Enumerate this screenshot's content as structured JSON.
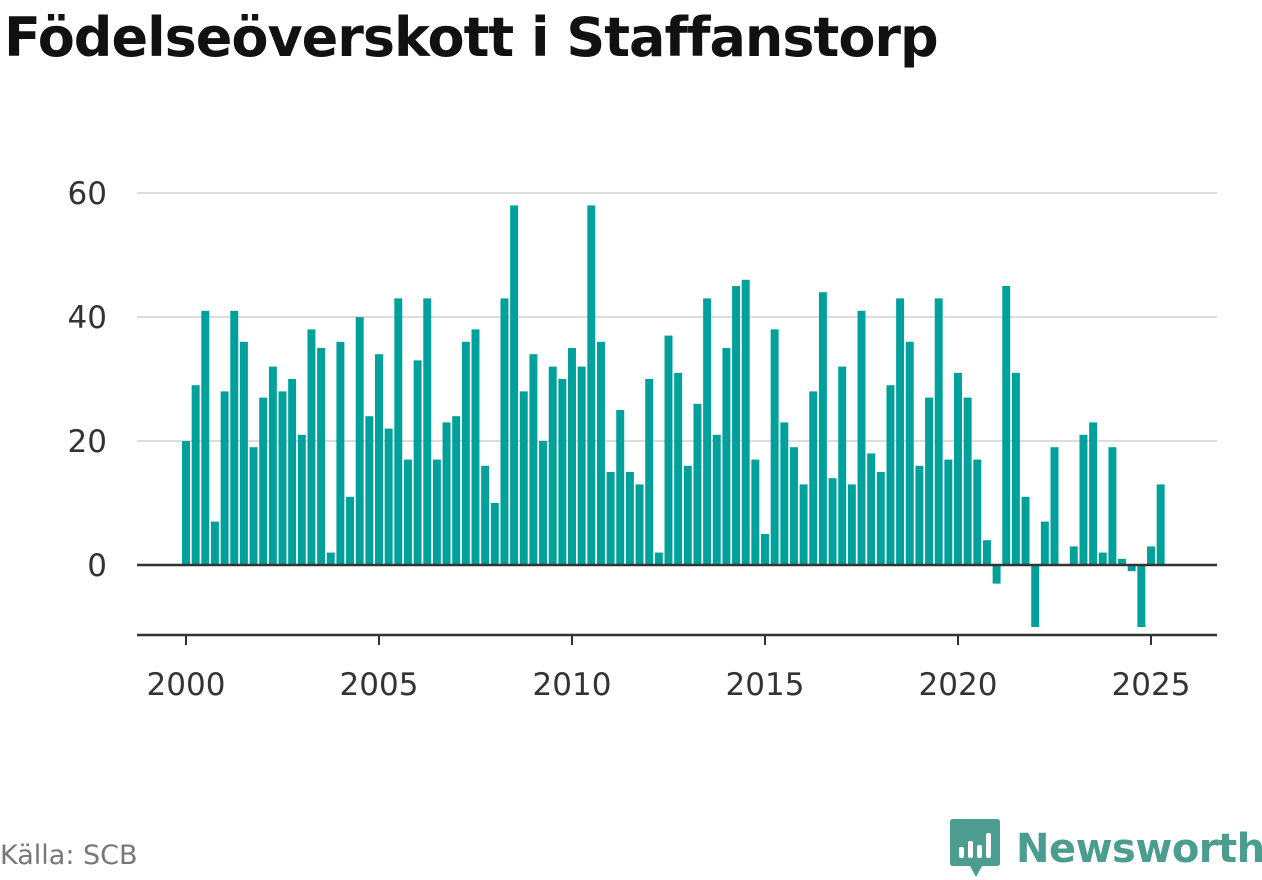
{
  "colors": {
    "bar": "#00a19a",
    "grid": "#dddddd",
    "baseline": "#333333",
    "brand": "#4a9d8f"
  },
  "source_label": "Källa: SCB",
  "brand": {
    "name": "Newsworthy",
    "icon": "newsworthy-logo-icon"
  },
  "chart_data": {
    "type": "bar",
    "title": "Födelseöverskott i Staffanstorp",
    "xlabel": "",
    "ylabel": "",
    "xlim": [
      1999.7,
      2027.3
    ],
    "ylim": [
      -11,
      65
    ],
    "yticks": [
      0,
      20,
      40,
      60
    ],
    "xticks": [
      2000,
      2005,
      2010,
      2015,
      2020,
      2025
    ],
    "grid": true,
    "legend": "none",
    "x_start": 2000.0,
    "x_step": 0.25,
    "values": [
      20,
      29,
      41,
      7,
      28,
      41,
      36,
      19,
      27,
      32,
      28,
      30,
      21,
      38,
      35,
      2,
      36,
      11,
      40,
      24,
      34,
      22,
      43,
      17,
      33,
      43,
      17,
      23,
      24,
      36,
      38,
      16,
      10,
      43,
      58,
      28,
      34,
      20,
      32,
      30,
      35,
      32,
      58,
      36,
      15,
      25,
      15,
      13,
      30,
      2,
      37,
      31,
      16,
      26,
      43,
      21,
      35,
      45,
      46,
      17,
      5,
      38,
      23,
      19,
      13,
      28,
      44,
      14,
      32,
      13,
      41,
      18,
      15,
      29,
      43,
      36,
      16,
      27,
      43,
      17,
      31,
      27,
      17,
      4,
      -3,
      45,
      31,
      11,
      -10,
      7,
      19,
      0,
      3,
      21,
      23,
      2,
      19,
      1,
      -1,
      -10,
      3,
      13
    ]
  }
}
